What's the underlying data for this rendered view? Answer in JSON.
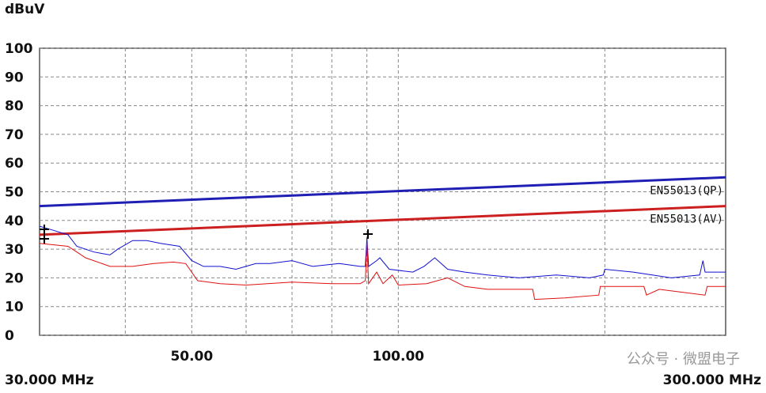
{
  "chart_data": {
    "type": "line",
    "y_label": "dBuV",
    "xscale": "log",
    "grid": true,
    "xlim": [
      30,
      300
    ],
    "xlim_labels": [
      "30.000 MHz",
      "300.000 MHz"
    ],
    "xticks": [
      {
        "value": 50,
        "label": "50.00"
      },
      {
        "value": 100,
        "label": "100.00"
      }
    ],
    "xgrid": [
      40,
      50,
      60,
      70,
      80,
      90,
      100,
      200
    ],
    "ylim": [
      0,
      100
    ],
    "yticks": [
      0,
      10,
      20,
      30,
      40,
      50,
      60,
      70,
      80,
      90,
      100
    ],
    "series": [
      {
        "name": "EN55013(QP)",
        "color": "#1f1fb4",
        "width": 3,
        "x": [
          30,
          300
        ],
        "values": [
          45,
          55
        ]
      },
      {
        "name": "EN55013(AV)",
        "color": "#cc1f1f",
        "width": 3,
        "x": [
          30,
          300
        ],
        "values": [
          35,
          45
        ]
      },
      {
        "color": "#1010d0",
        "width": 1,
        "x": [
          30,
          31,
          33,
          34,
          36,
          38,
          39,
          41,
          43,
          45,
          48,
          50,
          52,
          55,
          58,
          62,
          65,
          70,
          75,
          82,
          88,
          89.5,
          90,
          90.5,
          93,
          94,
          97,
          105,
          109,
          113,
          118,
          125,
          135,
          150,
          170,
          190,
          199,
          200,
          220,
          250,
          275,
          278,
          280,
          300
        ],
        "values": [
          38,
          37,
          35,
          31,
          29,
          28,
          30,
          33,
          33,
          32,
          31,
          26,
          24,
          24,
          23,
          25,
          25,
          26,
          24,
          25,
          24,
          24,
          34,
          24,
          26,
          27,
          23,
          22,
          24,
          27,
          23,
          22,
          21,
          20,
          21,
          20,
          21,
          23,
          22,
          20,
          21,
          26,
          22,
          22
        ]
      },
      {
        "color": "#e01010",
        "width": 1,
        "x": [
          30,
          33,
          34,
          35,
          38,
          41,
          44,
          47,
          49,
          51,
          55,
          60,
          70,
          80,
          88,
          89.5,
          90,
          90.5,
          93,
          95,
          98,
          100,
          110,
          118,
          125,
          135,
          150,
          157,
          158,
          175,
          196,
          197,
          215,
          228,
          230,
          240,
          280,
          282,
          300
        ],
        "values": [
          32,
          31,
          29,
          27,
          24,
          24,
          25,
          25.5,
          25,
          19,
          18,
          17.5,
          18.5,
          18,
          18,
          19,
          32,
          18,
          22,
          18,
          21,
          17.5,
          18,
          20,
          17,
          16,
          16,
          16,
          12.5,
          13,
          14,
          17,
          17,
          17,
          14,
          16,
          14,
          17,
          17
        ]
      }
    ],
    "watermark": "公众号 · 微盟电子"
  }
}
